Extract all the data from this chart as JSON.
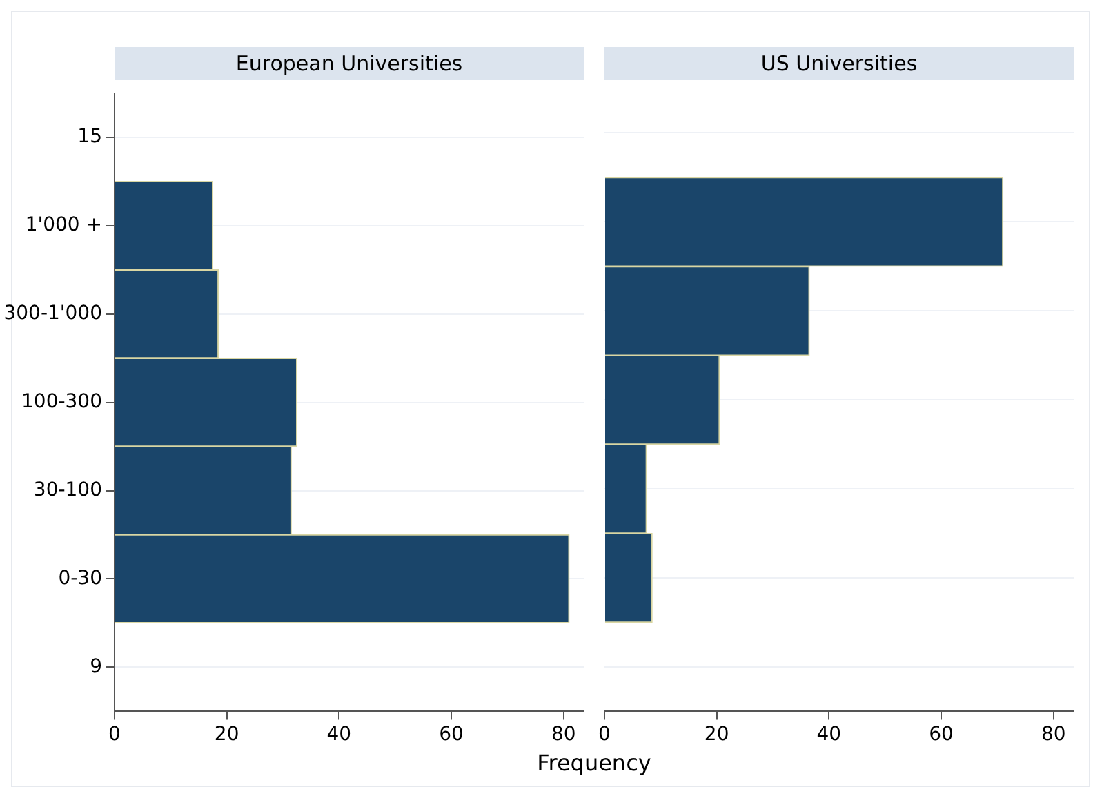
{
  "chart_data": [
    {
      "type": "bar",
      "title": "European Universities",
      "orientation": "horizontal",
      "xlabel": "Frequency",
      "color": "#1a456a",
      "categories": [
        "15",
        "1'000 +",
        "300-1'000",
        "100-300",
        "30-100",
        "0-30",
        "9"
      ],
      "values": [
        null,
        17.5,
        18.5,
        32.5,
        31.5,
        81,
        null
      ],
      "xlim": [
        0,
        83.6
      ],
      "xticks": [
        0,
        20,
        40,
        60,
        80
      ],
      "grid": "y"
    },
    {
      "type": "bar",
      "title": "US Universities",
      "orientation": "horizontal",
      "color": "#1a456a",
      "categories": [
        null,
        null,
        null,
        null,
        null,
        null,
        null
      ],
      "values": [
        null,
        71,
        36.5,
        20.5,
        7.5,
        8.5,
        null
      ],
      "xlim": [
        0,
        83.6
      ],
      "xticks": [
        0,
        20,
        40,
        60,
        80
      ],
      "grid": "y",
      "tick_labels": "x"
    }
  ]
}
